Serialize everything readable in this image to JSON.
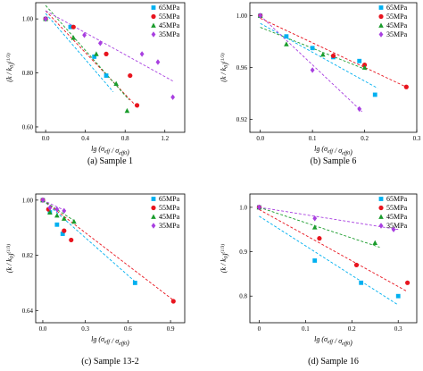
{
  "chart_data": [
    {
      "type": "scatter",
      "caption": "(a) Sample 1",
      "xlabel": "lg (σeff / σeff0)",
      "ylabel": "(k / k0)^(1/3)",
      "xlim": [
        -0.1,
        1.4
      ],
      "ylim": [
        0.58,
        1.06
      ],
      "xticks": [
        "0.0",
        "0.4",
        "0.8",
        "1.2"
      ],
      "yticks": [
        "0.60",
        "0.80",
        "1.00"
      ],
      "series": [
        {
          "name": "65MPa",
          "color": "#00b0f0",
          "marker": "square",
          "points": [
            [
              0.0,
              1.0
            ],
            [
              0.25,
              0.97
            ],
            [
              0.49,
              0.86
            ],
            [
              0.61,
              0.79
            ]
          ],
          "fit": [
            [
              0.0,
              1.02
            ],
            [
              0.68,
              0.73
            ]
          ]
        },
        {
          "name": "55MPa",
          "color": "#e8141e",
          "marker": "circle",
          "points": [
            [
              0.0,
              1.0
            ],
            [
              0.28,
              0.97
            ],
            [
              0.61,
              0.87
            ],
            [
              0.85,
              0.79
            ],
            [
              0.92,
              0.68
            ]
          ],
          "fit": [
            [
              0.0,
              1.03
            ],
            [
              0.93,
              0.67
            ]
          ]
        },
        {
          "name": "45MPa",
          "color": "#1a9c2c",
          "marker": "triangle",
          "points": [
            [
              0.0,
              1.0
            ],
            [
              0.28,
              0.93
            ],
            [
              0.51,
              0.87
            ],
            [
              0.71,
              0.76
            ],
            [
              0.82,
              0.66
            ]
          ],
          "fit": [
            [
              0.0,
              1.05
            ],
            [
              0.84,
              0.7
            ]
          ]
        },
        {
          "name": "35MPa",
          "color": "#a83fe0",
          "marker": "diamond",
          "points": [
            [
              0.0,
              1.0
            ],
            [
              0.39,
              0.94
            ],
            [
              0.55,
              0.91
            ],
            [
              0.97,
              0.87
            ],
            [
              1.13,
              0.84
            ],
            [
              1.28,
              0.71
            ]
          ],
          "fit": [
            [
              0.0,
              1.03
            ],
            [
              1.28,
              0.77
            ]
          ]
        }
      ]
    },
    {
      "type": "scatter",
      "caption": "(b) Sample 6",
      "xlabel": "lg (σeff / σeff0)",
      "ylabel": "(k / k0)^(1/3)",
      "xlim": [
        -0.02,
        0.3
      ],
      "ylim": [
        0.91,
        1.01
      ],
      "xticks": [
        "0.0",
        "0.1",
        "0.2",
        "0.3"
      ],
      "yticks": [
        "0.92",
        "0.96",
        "1.00"
      ],
      "series": [
        {
          "name": "65MPa",
          "color": "#00b0f0",
          "marker": "square",
          "points": [
            [
              0.0,
              1.0
            ],
            [
              0.05,
              0.984
            ],
            [
              0.1,
              0.975
            ],
            [
              0.14,
              0.968
            ],
            [
              0.19,
              0.965
            ],
            [
              0.22,
              0.939
            ]
          ],
          "fit": [
            [
              0.0,
              0.994
            ],
            [
              0.225,
              0.944
            ]
          ]
        },
        {
          "name": "55MPa",
          "color": "#e8141e",
          "marker": "circle",
          "points": [
            [
              0.0,
              1.0
            ],
            [
              0.14,
              0.969
            ],
            [
              0.2,
              0.962
            ],
            [
              0.28,
              0.945
            ]
          ],
          "fit": [
            [
              0.0,
              0.998
            ],
            [
              0.285,
              0.944
            ]
          ]
        },
        {
          "name": "45MPa",
          "color": "#1a9c2c",
          "marker": "triangle",
          "points": [
            [
              0.0,
              1.0
            ],
            [
              0.05,
              0.978
            ],
            [
              0.12,
              0.97
            ],
            [
              0.2,
              0.96
            ]
          ],
          "fit": [
            [
              0.0,
              0.991
            ],
            [
              0.205,
              0.958
            ]
          ]
        },
        {
          "name": "35MPa",
          "color": "#a83fe0",
          "marker": "diamond",
          "points": [
            [
              0.0,
              1.0
            ],
            [
              0.1,
              0.958
            ],
            [
              0.19,
              0.928
            ]
          ],
          "fit": [
            [
              0.0,
              1.0
            ],
            [
              0.195,
              0.926
            ]
          ]
        }
      ]
    },
    {
      "type": "scatter",
      "caption": "(c) Sample 13-2",
      "xlabel": "lg (σeff / σeff0)",
      "ylabel": "(k / k0)^(1/3)",
      "xlim": [
        -0.05,
        1.0
      ],
      "ylim": [
        0.6,
        1.02
      ],
      "xticks": [
        "0.0",
        "0.3",
        "0.6",
        "0.9"
      ],
      "yticks": [
        "0.64",
        "0.82",
        "1.00"
      ],
      "series": [
        {
          "name": "65MPa",
          "color": "#00b0f0",
          "marker": "square",
          "points": [
            [
              0.0,
              1.0
            ],
            [
              0.05,
              0.96
            ],
            [
              0.1,
              0.92
            ],
            [
              0.14,
              0.89
            ],
            [
              0.65,
              0.73
            ]
          ],
          "fit": [
            [
              0.0,
              1.0
            ],
            [
              0.66,
              0.73
            ]
          ]
        },
        {
          "name": "55MPa",
          "color": "#e8141e",
          "marker": "circle",
          "points": [
            [
              0.0,
              1.0
            ],
            [
              0.04,
              0.97
            ],
            [
              0.15,
              0.9
            ],
            [
              0.2,
              0.87
            ],
            [
              0.92,
              0.67
            ]
          ],
          "fit": [
            [
              0.0,
              1.0
            ],
            [
              0.93,
              0.67
            ]
          ]
        },
        {
          "name": "45MPa",
          "color": "#1a9c2c",
          "marker": "triangle",
          "points": [
            [
              0.0,
              1.0
            ],
            [
              0.05,
              0.96
            ],
            [
              0.1,
              0.95
            ],
            [
              0.15,
              0.94
            ],
            [
              0.22,
              0.93
            ]
          ],
          "fit": [
            [
              0.0,
              1.0
            ],
            [
              0.23,
              0.93
            ]
          ]
        },
        {
          "name": "35MPa",
          "color": "#a83fe0",
          "marker": "diamond",
          "points": [
            [
              0.0,
              1.0
            ],
            [
              0.05,
              0.975
            ],
            [
              0.1,
              0.97
            ],
            [
              0.15,
              0.965
            ]
          ],
          "fit": [
            [
              0.0,
              1.0
            ],
            [
              0.16,
              0.965
            ]
          ]
        }
      ]
    },
    {
      "type": "scatter",
      "caption": "(d) Sample 16",
      "xlabel": "lg (σeff / σeff0)",
      "ylabel": "(k / k0)^(1/3)",
      "xlim": [
        -0.02,
        0.34
      ],
      "ylim": [
        0.74,
        1.03
      ],
      "xticks": [
        "0",
        "0.1",
        "0.2",
        "0.3"
      ],
      "yticks": [
        "0.8",
        "0.9",
        "1.0"
      ],
      "series": [
        {
          "name": "65MPa",
          "color": "#00b0f0",
          "marker": "square",
          "points": [
            [
              0.0,
              1.0
            ],
            [
              0.12,
              0.88
            ],
            [
              0.22,
              0.83
            ],
            [
              0.3,
              0.8
            ]
          ],
          "fit": [
            [
              0.0,
              0.98
            ],
            [
              0.3,
              0.78
            ]
          ]
        },
        {
          "name": "55MPa",
          "color": "#e8141e",
          "marker": "circle",
          "points": [
            [
              0.0,
              1.0
            ],
            [
              0.13,
              0.93
            ],
            [
              0.21,
              0.87
            ],
            [
              0.32,
              0.83
            ]
          ],
          "fit": [
            [
              0.0,
              0.995
            ],
            [
              0.32,
              0.81
            ]
          ]
        },
        {
          "name": "45MPa",
          "color": "#1a9c2c",
          "marker": "triangle",
          "points": [
            [
              0.0,
              1.0
            ],
            [
              0.12,
              0.955
            ],
            [
              0.25,
              0.92
            ]
          ],
          "fit": [
            [
              0.0,
              1.0
            ],
            [
              0.26,
              0.91
            ]
          ]
        },
        {
          "name": "35MPa",
          "color": "#a83fe0",
          "marker": "diamond",
          "points": [
            [
              0.0,
              1.0
            ],
            [
              0.12,
              0.975
            ],
            [
              0.29,
              0.95
            ]
          ],
          "fit": [
            [
              0.0,
              1.0
            ],
            [
              0.3,
              0.95
            ]
          ]
        }
      ]
    }
  ]
}
